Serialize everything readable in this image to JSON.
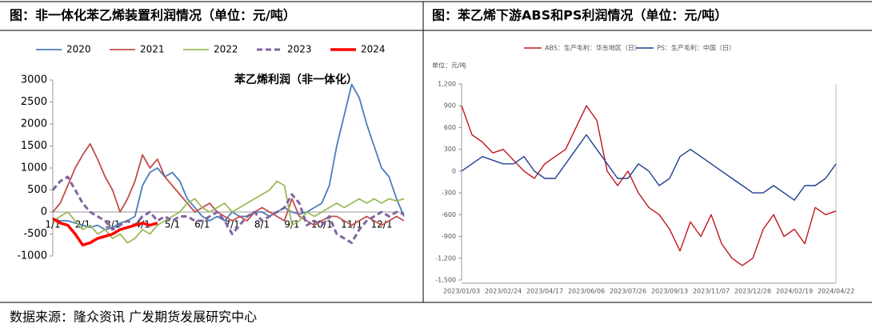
{
  "header": {
    "left_title": "图：非一体化苯乙烯装置利润情况（单位：元/吨）",
    "right_title": "图：苯乙烯下游ABS和PS利润情况（单位：元/吨）"
  },
  "footer": "数据来源：隆众资讯  广发期货发展研究中心",
  "chart_data": [
    {
      "type": "line",
      "annotation": "苯乙烯利润（非一体化）",
      "categories": [
        "1/1",
        null,
        null,
        null,
        "2/1",
        null,
        null,
        null,
        "3/1",
        null,
        null,
        null,
        "4/1",
        null,
        null,
        null,
        "5/1",
        null,
        null,
        null,
        "6/1",
        null,
        null,
        null,
        "7/1",
        null,
        null,
        null,
        "8/1",
        null,
        null,
        null,
        "9/1",
        null,
        null,
        null,
        "10/1",
        null,
        null,
        null,
        "11/1",
        null,
        null,
        null,
        "12/1",
        null,
        null,
        null
      ],
      "ylim": [
        -1000,
        3000
      ],
      "yticks": [
        -1000,
        -500,
        0,
        500,
        1000,
        1500,
        2000,
        2500,
        3000
      ],
      "series": [
        {
          "name": "2020",
          "color": "#4a7ebb",
          "line_style": "solid",
          "values": [
            -150,
            -200,
            -200,
            -250,
            -300,
            -350,
            -300,
            -400,
            -350,
            -250,
            -200,
            -100,
            600,
            900,
            1000,
            800,
            900,
            700,
            300,
            100,
            -100,
            -200,
            -100,
            -200,
            0,
            -100,
            -100,
            0,
            0,
            -100,
            0,
            100,
            0,
            -50,
            0,
            100,
            200,
            600,
            1500,
            2200,
            2900,
            2600,
            2000,
            1500,
            1000,
            800,
            300,
            -100
          ]
        },
        {
          "name": "2021",
          "color": "#c0504d",
          "line_style": "solid",
          "values": [
            0,
            200,
            600,
            1000,
            1300,
            1550,
            1200,
            800,
            500,
            0,
            300,
            700,
            1300,
            1000,
            1200,
            800,
            600,
            400,
            200,
            0,
            100,
            200,
            0,
            -100,
            -200,
            -100,
            -200,
            0,
            100,
            0,
            -100,
            -200,
            300,
            -100,
            -200,
            -300,
            -200,
            -100,
            -100,
            -200,
            -300,
            -200,
            -100,
            -200,
            -300,
            -200,
            -100,
            -200
          ]
        },
        {
          "name": "2022",
          "color": "#9bbb59",
          "line_style": "solid",
          "values": [
            -200,
            -100,
            0,
            -200,
            -400,
            -300,
            -500,
            -400,
            -600,
            -500,
            -700,
            -600,
            -400,
            -500,
            -300,
            -200,
            -100,
            0,
            200,
            300,
            100,
            0,
            100,
            200,
            0,
            100,
            200,
            300,
            400,
            500,
            700,
            600,
            -300,
            -200,
            0,
            -100,
            0,
            100,
            200,
            100,
            200,
            300,
            200,
            300,
            200,
            300,
            250,
            300
          ]
        },
        {
          "name": "2023",
          "color": "#8064a2",
          "line_style": "dashed",
          "values": [
            500,
            700,
            800,
            500,
            200,
            0,
            -100,
            -200,
            -400,
            -300,
            -200,
            -300,
            -100,
            0,
            -200,
            -100,
            -200,
            -100,
            -100,
            -200,
            -200,
            -100,
            0,
            -200,
            -500,
            -300,
            -100,
            0,
            -200,
            -100,
            0,
            100,
            400,
            200,
            -300,
            -200,
            -300,
            -100,
            -500,
            -600,
            -700,
            -400,
            -200,
            -100,
            0,
            -100,
            0,
            -50
          ]
        },
        {
          "name": "2024",
          "color": "#ff0000",
          "line_style": "bold",
          "values": [
            -150,
            -250,
            -300,
            -500,
            -750,
            -700,
            -600,
            -550,
            -500,
            -400,
            -350,
            -300,
            -250,
            -300,
            -250,
            null,
            null,
            null,
            null,
            null,
            null,
            null,
            null,
            null,
            null,
            null,
            null,
            null,
            null,
            null,
            null,
            null,
            null,
            null,
            null,
            null,
            null,
            null,
            null,
            null,
            null,
            null,
            null,
            null,
            null,
            null,
            null,
            null
          ]
        }
      ]
    },
    {
      "type": "line",
      "annotation": "单位：元/吨",
      "categories": [
        "2023/01/03",
        null,
        null,
        null,
        "2023/02/24",
        null,
        null,
        null,
        "2023/04/17",
        null,
        null,
        null,
        "2023/06/06",
        null,
        null,
        null,
        "2023/07/26",
        null,
        null,
        null,
        "2023/09/13",
        null,
        null,
        null,
        "2023/11/07",
        null,
        null,
        null,
        "2023/12/26",
        null,
        null,
        null,
        "2024/02/19",
        null,
        null,
        null,
        "2024/04/22"
      ],
      "ylim": [
        -1500,
        1200
      ],
      "yticks": [
        {
          "value": -1500,
          "label": "-1,500"
        },
        {
          "value": -1200,
          "label": "-1,200"
        },
        -900,
        -600,
        -300,
        0,
        300,
        600,
        900,
        {
          "value": 1200,
          "label": "1,200"
        }
      ],
      "series": [
        {
          "name": "ABS：生产毛利：华东地区（日）",
          "color": "#c0161e",
          "line_style": "solid",
          "values": [
            900,
            500,
            400,
            250,
            300,
            150,
            0,
            -100,
            100,
            200,
            300,
            600,
            900,
            700,
            0,
            -200,
            0,
            -300,
            -500,
            -600,
            -800,
            -1100,
            -700,
            -900,
            -600,
            -1000,
            -1200,
            -1300,
            -1200,
            -800,
            -600,
            -900,
            -800,
            -1000,
            -500,
            -600,
            -550
          ]
        },
        {
          "name": "PS：生产毛利：中国（日）",
          "color": "#1f3f8f",
          "line_style": "solid",
          "values": [
            0,
            100,
            200,
            150,
            100,
            100,
            200,
            0,
            -100,
            -100,
            100,
            300,
            500,
            300,
            100,
            -100,
            -100,
            100,
            0,
            -200,
            -100,
            200,
            300,
            200,
            100,
            0,
            -100,
            -200,
            -300,
            -300,
            -200,
            -300,
            -400,
            -200,
            -200,
            -100,
            100
          ]
        }
      ]
    }
  ]
}
